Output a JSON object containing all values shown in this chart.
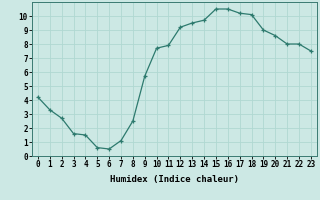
{
  "x": [
    0,
    1,
    2,
    3,
    4,
    5,
    6,
    7,
    8,
    9,
    10,
    11,
    12,
    13,
    14,
    15,
    16,
    17,
    18,
    19,
    20,
    21,
    22,
    23
  ],
  "y": [
    4.2,
    3.3,
    2.7,
    1.6,
    1.5,
    0.6,
    0.5,
    1.1,
    2.5,
    5.7,
    7.7,
    7.9,
    9.2,
    9.5,
    9.7,
    10.5,
    10.5,
    10.2,
    10.1,
    9.0,
    8.6,
    8.0,
    8.0,
    7.5
  ],
  "xlabel": "Humidex (Indice chaleur)",
  "line_color": "#2d7a6e",
  "marker": "+",
  "bg_color": "#cce8e4",
  "grid_color": "#b0d8d2",
  "xlim": [
    -0.5,
    23.5
  ],
  "ylim": [
    0,
    11
  ],
  "yticks": [
    0,
    1,
    2,
    3,
    4,
    5,
    6,
    7,
    8,
    9,
    10
  ],
  "xticks": [
    0,
    1,
    2,
    3,
    4,
    5,
    6,
    7,
    8,
    9,
    10,
    11,
    12,
    13,
    14,
    15,
    16,
    17,
    18,
    19,
    20,
    21,
    22,
    23
  ],
  "xtick_labels": [
    "0",
    "1",
    "2",
    "3",
    "4",
    "5",
    "6",
    "7",
    "8",
    "9",
    "10",
    "11",
    "12",
    "13",
    "14",
    "15",
    "16",
    "17",
    "18",
    "19",
    "20",
    "21",
    "22",
    "23"
  ],
  "label_fontsize": 6.5,
  "tick_fontsize": 5.5
}
